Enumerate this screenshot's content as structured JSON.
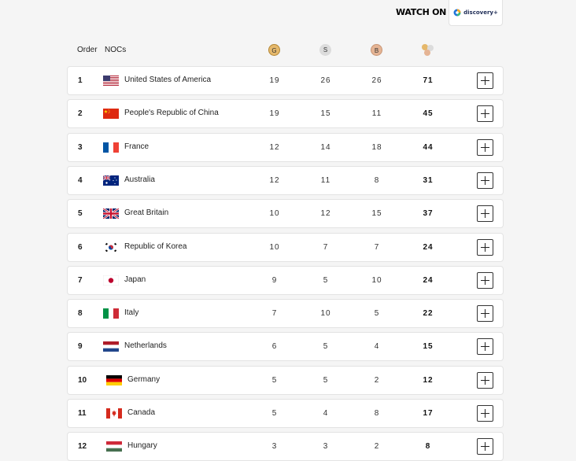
{
  "top": {
    "watch_on": "WATCH ON",
    "partner": "discovery+"
  },
  "header": {
    "order": "Order",
    "nocs": "NOCs",
    "gold": "G",
    "silver": "S",
    "bronze": "B",
    "total_icon": "total-medals-icon"
  },
  "colors": {
    "gold": "#e5b86b",
    "silver": "#dcdcdc",
    "bronze": "#e5b494"
  },
  "rows": [
    {
      "order": "1",
      "noc": "United States of America",
      "flag": "usa-flag-icon",
      "gold": "19",
      "silver": "26",
      "bronze": "26",
      "total": "71"
    },
    {
      "order": "2",
      "noc": "People's Republic of China",
      "flag": "china-flag-icon",
      "gold": "19",
      "silver": "15",
      "bronze": "11",
      "total": "45"
    },
    {
      "order": "3",
      "noc": "France",
      "flag": "france-flag-icon",
      "gold": "12",
      "silver": "14",
      "bronze": "18",
      "total": "44"
    },
    {
      "order": "4",
      "noc": "Australia",
      "flag": "australia-flag-icon",
      "gold": "12",
      "silver": "11",
      "bronze": "8",
      "total": "31"
    },
    {
      "order": "5",
      "noc": "Great Britain",
      "flag": "great-britain-flag-icon",
      "gold": "10",
      "silver": "12",
      "bronze": "15",
      "total": "37"
    },
    {
      "order": "6",
      "noc": "Republic of Korea",
      "flag": "korea-flag-icon",
      "gold": "10",
      "silver": "7",
      "bronze": "7",
      "total": "24"
    },
    {
      "order": "7",
      "noc": "Japan",
      "flag": "japan-flag-icon",
      "gold": "9",
      "silver": "5",
      "bronze": "10",
      "total": "24"
    },
    {
      "order": "8",
      "noc": "Italy",
      "flag": "italy-flag-icon",
      "gold": "7",
      "silver": "10",
      "bronze": "5",
      "total": "22"
    },
    {
      "order": "9",
      "noc": "Netherlands",
      "flag": "netherlands-flag-icon",
      "gold": "6",
      "silver": "5",
      "bronze": "4",
      "total": "15"
    },
    {
      "order": "10",
      "noc": "Germany",
      "flag": "germany-flag-icon",
      "gold": "5",
      "silver": "5",
      "bronze": "2",
      "total": "12"
    },
    {
      "order": "11",
      "noc": "Canada",
      "flag": "canada-flag-icon",
      "gold": "5",
      "silver": "4",
      "bronze": "8",
      "total": "17"
    },
    {
      "order": "12",
      "noc": "Hungary",
      "flag": "hungary-flag-icon",
      "gold": "3",
      "silver": "3",
      "bronze": "2",
      "total": "8"
    }
  ]
}
